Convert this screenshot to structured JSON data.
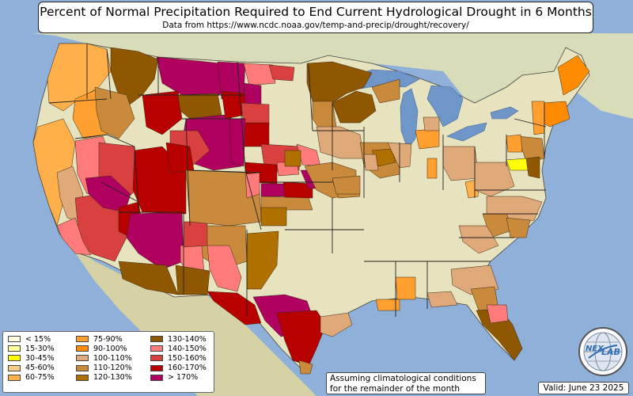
{
  "title": "Percent of Normal Precipitation Required to End Current Hydrological Drought in 6 Months",
  "subtitle": "Data from https://www.ncdc.noaa.gov/temp-and-precip/drought/recovery/",
  "note_line1": "Assuming climatological conditions",
  "note_line2": "for the remainder of the month",
  "valid": "Valid: June 23 2025",
  "logo": {
    "text_top": "NEX",
    "text_bottom": "LAB",
    "icon": "nexlab-globe-logo"
  },
  "legend": [
    {
      "label": "< 15%",
      "color": "#fffde0"
    },
    {
      "label": "15-30%",
      "color": "#ffff9e"
    },
    {
      "label": "30-45%",
      "color": "#ffff00"
    },
    {
      "label": "45-60%",
      "color": "#f8cf8a"
    },
    {
      "label": "60-75%",
      "color": "#ffb04a"
    },
    {
      "label": "75-90%",
      "color": "#ff9f30"
    },
    {
      "label": "90-100%",
      "color": "#ff8c00"
    },
    {
      "label": "100-110%",
      "color": "#dfa97a"
    },
    {
      "label": "110-120%",
      "color": "#c98a3c"
    },
    {
      "label": "120-130%",
      "color": "#b07000"
    },
    {
      "label": "130-140%",
      "color": "#8f5800"
    },
    {
      "label": "140-150%",
      "color": "#ff7b7b"
    },
    {
      "label": "150-160%",
      "color": "#d94040"
    },
    {
      "label": "160-170%",
      "color": "#b80000"
    },
    {
      "label": "> 170%",
      "color": "#b00060"
    }
  ],
  "colors": {
    "ocean": "#8fb0d8",
    "land": "#e8e3bf",
    "lakes": "#6f96c8"
  }
}
